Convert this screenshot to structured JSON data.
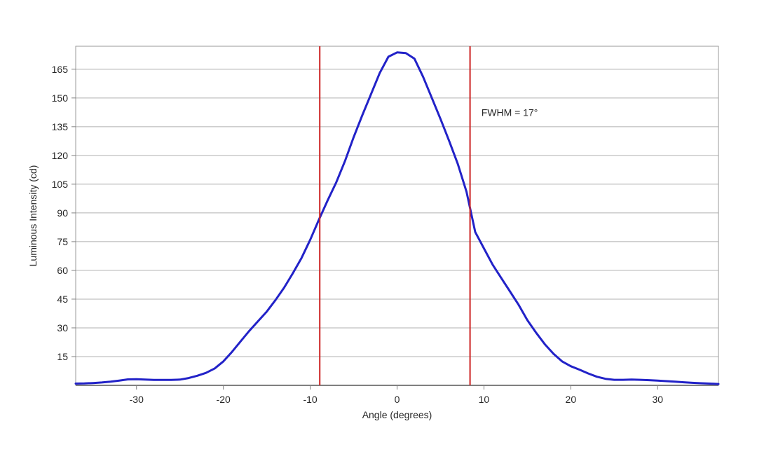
{
  "chart_data": {
    "type": "line",
    "title": "",
    "xlabel": "Angle (degrees)",
    "ylabel": "Luminous Intensity (cd)",
    "xlim": [
      -37,
      37
    ],
    "ylim": [
      0,
      177
    ],
    "x_ticks": [
      -30,
      -20,
      -10,
      0,
      10,
      20,
      30
    ],
    "y_ticks": [
      15,
      30,
      45,
      60,
      75,
      90,
      105,
      120,
      135,
      150,
      165
    ],
    "grid": "horizontal-only",
    "legend": "none",
    "annotation": {
      "text": "FWHM = 17°",
      "x_angle": 9.7,
      "y_value": 142.5
    },
    "fwhm_lines": {
      "left_angle": -8.9,
      "right_angle": 8.4
    },
    "series": [
      {
        "name": "luminous-intensity-vs-angle",
        "x": [
          -37,
          -36,
          -35,
          -34,
          -33,
          -32,
          -31,
          -30,
          -29,
          -28,
          -27,
          -26,
          -25,
          -24,
          -23,
          -22,
          -21,
          -20,
          -19,
          -18,
          -17,
          -16,
          -15,
          -14,
          -13,
          -12,
          -11,
          -10,
          -9,
          -8,
          -7,
          -6,
          -5,
          -4,
          -3,
          -2,
          -1,
          0,
          1,
          2,
          3,
          4,
          5,
          6,
          7,
          8,
          9,
          10,
          11,
          12,
          13,
          14,
          15,
          16,
          17,
          18,
          19,
          20,
          21,
          22,
          23,
          24,
          25,
          26,
          27,
          28,
          29,
          30,
          31,
          32,
          33,
          34,
          35,
          36,
          37
        ],
        "y": [
          0.9,
          1.0,
          1.2,
          1.5,
          1.9,
          2.5,
          3.1,
          3.2,
          3.0,
          2.8,
          2.8,
          2.8,
          3.0,
          3.8,
          5.0,
          6.5,
          8.8,
          12.5,
          17.5,
          23,
          28.5,
          33.5,
          38.5,
          44.5,
          51,
          58.5,
          66.5,
          76,
          86.5,
          96.5,
          106,
          117,
          129.5,
          141,
          152,
          163,
          171.5,
          173.8,
          173.4,
          170.5,
          161,
          150,
          139,
          127.5,
          115.5,
          101,
          80,
          71.5,
          63,
          56,
          49,
          42,
          34,
          27.5,
          21.5,
          16.5,
          12.5,
          10,
          8.2,
          6.2,
          4.5,
          3.4,
          2.9,
          2.9,
          3.0,
          2.9,
          2.7,
          2.5,
          2.2,
          1.9,
          1.6,
          1.3,
          1.1,
          0.9,
          0.7
        ]
      }
    ]
  },
  "colors": {
    "curve": "#2222c8",
    "fwhm_line": "#cc2222",
    "gridline": "#b0b0b0",
    "plot_border": "#999999",
    "axis_line": "#808080",
    "text": "#262626",
    "background": "#ffffff"
  }
}
